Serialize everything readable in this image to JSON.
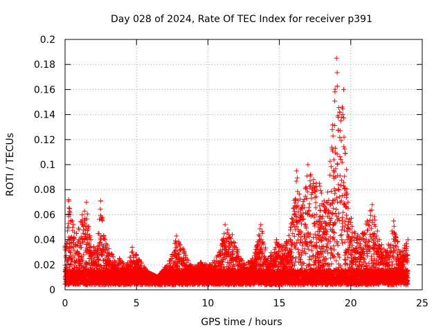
{
  "chart_data": {
    "type": "scatter",
    "title": "Day 028 of 2024, Rate Of TEC Index for receiver p391",
    "xlabel": "GPS time / hours",
    "ylabel": "ROTI / TECUs",
    "xlim": [
      0,
      25
    ],
    "ylim": [
      0,
      0.2
    ],
    "xticks": [
      0,
      5,
      10,
      15,
      20,
      25
    ],
    "yticks": [
      0,
      0.02,
      0.04,
      0.06,
      0.08,
      0.1,
      0.12,
      0.14,
      0.16,
      0.18,
      0.2
    ],
    "xtick_labels": [
      "0",
      "5",
      "10",
      "15",
      "20",
      "25"
    ],
    "ytick_labels": [
      "0",
      "0.02",
      "0.04",
      "0.06",
      "0.08",
      "0.1",
      "0.12",
      "0.14",
      "0.16",
      "0.18",
      "0.2"
    ],
    "grid": true,
    "marker": "+",
    "series": [
      {
        "name": "ROTI",
        "color": "#ff0000",
        "envelope": [
          {
            "x": 0.0,
            "y": 0.035
          },
          {
            "x": 0.25,
            "y": 0.072
          },
          {
            "x": 0.5,
            "y": 0.055
          },
          {
            "x": 0.8,
            "y": 0.045
          },
          {
            "x": 1.2,
            "y": 0.06
          },
          {
            "x": 1.5,
            "y": 0.07
          },
          {
            "x": 1.8,
            "y": 0.04
          },
          {
            "x": 2.2,
            "y": 0.03
          },
          {
            "x": 2.5,
            "y": 0.071
          },
          {
            "x": 2.8,
            "y": 0.04
          },
          {
            "x": 3.3,
            "y": 0.028
          },
          {
            "x": 3.8,
            "y": 0.025
          },
          {
            "x": 4.3,
            "y": 0.02
          },
          {
            "x": 4.7,
            "y": 0.034
          },
          {
            "x": 5.2,
            "y": 0.024
          },
          {
            "x": 5.8,
            "y": 0.014
          },
          {
            "x": 6.5,
            "y": 0.01
          },
          {
            "x": 7.0,
            "y": 0.018
          },
          {
            "x": 7.5,
            "y": 0.028
          },
          {
            "x": 7.8,
            "y": 0.043
          },
          {
            "x": 8.3,
            "y": 0.032
          },
          {
            "x": 8.8,
            "y": 0.02
          },
          {
            "x": 9.5,
            "y": 0.022
          },
          {
            "x": 10.2,
            "y": 0.02
          },
          {
            "x": 10.8,
            "y": 0.03
          },
          {
            "x": 11.2,
            "y": 0.052
          },
          {
            "x": 11.7,
            "y": 0.044
          },
          {
            "x": 12.3,
            "y": 0.025
          },
          {
            "x": 12.8,
            "y": 0.022
          },
          {
            "x": 13.3,
            "y": 0.03
          },
          {
            "x": 13.7,
            "y": 0.052
          },
          {
            "x": 14.2,
            "y": 0.025
          },
          {
            "x": 14.8,
            "y": 0.04
          },
          {
            "x": 15.3,
            "y": 0.035
          },
          {
            "x": 15.8,
            "y": 0.05
          },
          {
            "x": 16.2,
            "y": 0.095
          },
          {
            "x": 16.6,
            "y": 0.065
          },
          {
            "x": 17.0,
            "y": 0.1
          },
          {
            "x": 17.4,
            "y": 0.088
          },
          {
            "x": 17.8,
            "y": 0.085
          },
          {
            "x": 18.3,
            "y": 0.07
          },
          {
            "x": 18.7,
            "y": 0.128
          },
          {
            "x": 19.0,
            "y": 0.185
          },
          {
            "x": 19.3,
            "y": 0.135
          },
          {
            "x": 19.5,
            "y": 0.16
          },
          {
            "x": 19.8,
            "y": 0.07
          },
          {
            "x": 20.3,
            "y": 0.045
          },
          {
            "x": 20.8,
            "y": 0.045
          },
          {
            "x": 21.5,
            "y": 0.068
          },
          {
            "x": 22.0,
            "y": 0.04
          },
          {
            "x": 22.5,
            "y": 0.03
          },
          {
            "x": 23.0,
            "y": 0.055
          },
          {
            "x": 23.5,
            "y": 0.03
          },
          {
            "x": 24.0,
            "y": 0.04
          }
        ]
      }
    ]
  }
}
